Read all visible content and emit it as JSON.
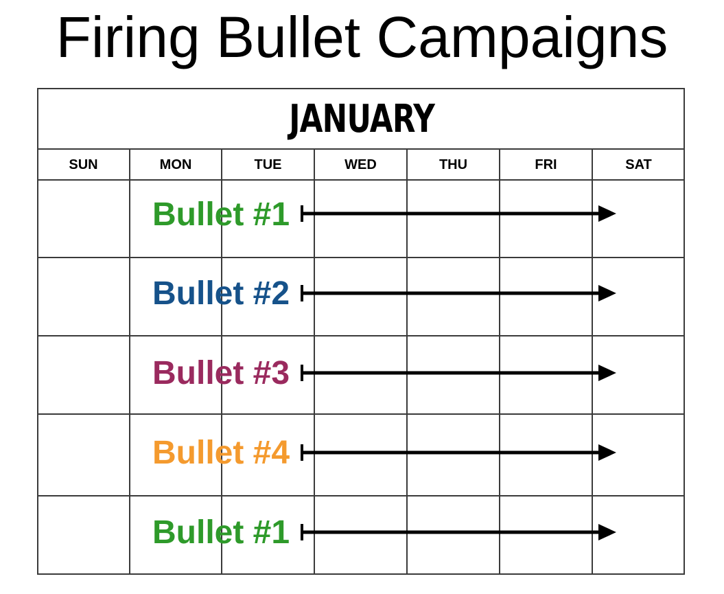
{
  "title": "Firing Bullet Campaigns",
  "calendar": {
    "month": "JANUARY",
    "days": [
      "SUN",
      "MON",
      "TUE",
      "WED",
      "THU",
      "FRI",
      "SAT"
    ],
    "rows": [
      {
        "label": "Bullet #1",
        "color": "#2e9a2a"
      },
      {
        "label": "Bullet #2",
        "color": "#16528a"
      },
      {
        "label": "Bullet #3",
        "color": "#9a2a5e"
      },
      {
        "label": "Bullet #4",
        "color": "#f49a2e"
      },
      {
        "label": "Bullet #1",
        "color": "#2e9a2a"
      }
    ]
  }
}
